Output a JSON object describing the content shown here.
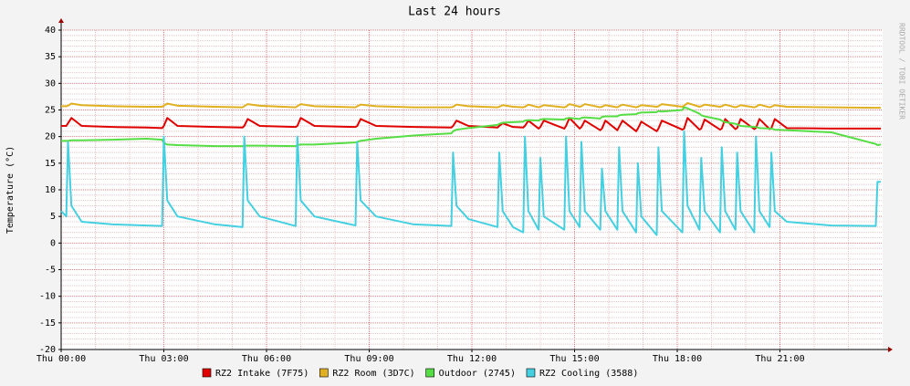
{
  "chart_data": {
    "type": "line",
    "title": "Last 24 hours",
    "y_label": "Temperature (°C)",
    "watermark": "RRDTOOL / TOBI OETIKER",
    "grid": true,
    "legend": "bottom",
    "xlim": [
      0,
      24
    ],
    "xticks": [
      {
        "value": 0,
        "label": "Thu 00:00"
      },
      {
        "value": 3,
        "label": "Thu 03:00"
      },
      {
        "value": 6,
        "label": "Thu 06:00"
      },
      {
        "value": 9,
        "label": "Thu 09:00"
      },
      {
        "value": 12,
        "label": "Thu 12:00"
      },
      {
        "value": 15,
        "label": "Thu 15:00"
      },
      {
        "value": 18,
        "label": "Thu 18:00"
      },
      {
        "value": 21,
        "label": "Thu 21:00"
      }
    ],
    "ylim": [
      -20,
      40
    ],
    "yticks": [
      -20,
      -15,
      -10,
      -5,
      0,
      5,
      10,
      15,
      20,
      25,
      30,
      35,
      40
    ],
    "x": [
      0,
      0.15,
      0.2,
      0.3,
      0.6,
      1.5,
      2.5,
      2.95,
      3.0,
      3.1,
      3.4,
      4.5,
      5.3,
      5.35,
      5.45,
      5.8,
      6.85,
      6.9,
      7.0,
      7.4,
      8.6,
      8.65,
      8.75,
      9.2,
      10.3,
      11.4,
      11.45,
      11.55,
      11.9,
      12.75,
      12.8,
      12.9,
      13.2,
      13.5,
      13.55,
      13.65,
      13.95,
      14.0,
      14.1,
      14.7,
      14.75,
      14.85,
      15.15,
      15.2,
      15.3,
      15.75,
      15.8,
      15.9,
      16.25,
      16.3,
      16.4,
      16.8,
      16.85,
      16.95,
      17.4,
      17.45,
      17.55,
      18.15,
      18.2,
      18.3,
      18.65,
      18.7,
      18.8,
      19.25,
      19.3,
      19.4,
      19.7,
      19.75,
      19.85,
      20.25,
      20.3,
      20.4,
      20.7,
      20.75,
      20.85,
      21.2,
      22.5,
      23.8,
      23.85,
      23.95
    ],
    "series": [
      {
        "name": "RZ2 Intake (7F75)",
        "color": "#e00000",
        "values": [
          22,
          22,
          22.5,
          23.5,
          22,
          21.8,
          21.7,
          21.6,
          22,
          23.5,
          22,
          21.8,
          21.7,
          22,
          23.3,
          22,
          21.8,
          22,
          23.5,
          22,
          21.8,
          22,
          23.3,
          22,
          21.8,
          21.7,
          22,
          23,
          22,
          21.7,
          22,
          22.5,
          21.8,
          21.7,
          22,
          23,
          21.5,
          21.8,
          23,
          21.5,
          22,
          23.5,
          21.5,
          21.8,
          23,
          21.2,
          21.5,
          23,
          21.2,
          21.8,
          23,
          21,
          21.5,
          22.8,
          21,
          21.5,
          23,
          21.3,
          21.5,
          23.5,
          21.3,
          21.5,
          23.2,
          21.3,
          21.5,
          23.3,
          21.4,
          21.6,
          23.3,
          21.4,
          21.6,
          23.3,
          21.4,
          21.6,
          23.3,
          21.6,
          21.5,
          21.5,
          21.5,
          21.5
        ]
      },
      {
        "name": "RZ2 Room (3D7C)",
        "color": "#e0b020",
        "values": [
          25.7,
          25.7,
          25.8,
          26.2,
          25.9,
          25.7,
          25.6,
          25.6,
          25.8,
          26.2,
          25.8,
          25.6,
          25.5,
          25.7,
          26.1,
          25.8,
          25.5,
          25.7,
          26.1,
          25.7,
          25.5,
          25.7,
          26,
          25.7,
          25.5,
          25.5,
          25.6,
          26,
          25.7,
          25.5,
          25.6,
          25.9,
          25.6,
          25.5,
          25.6,
          26,
          25.5,
          25.6,
          25.9,
          25.5,
          25.6,
          26.1,
          25.6,
          25.7,
          26.1,
          25.5,
          25.6,
          25.9,
          25.5,
          25.7,
          26,
          25.5,
          25.6,
          25.9,
          25.6,
          25.7,
          26.1,
          25.6,
          25.8,
          26.3,
          25.6,
          25.7,
          26,
          25.6,
          25.7,
          26,
          25.5,
          25.6,
          25.9,
          25.5,
          25.6,
          26,
          25.5,
          25.6,
          25.9,
          25.6,
          25.5,
          25.4,
          25.4,
          25.4
        ]
      },
      {
        "name": "Outdoor (2745)",
        "color": "#55dd44",
        "values": [
          19.2,
          19.2,
          19.2,
          19.3,
          19.3,
          19.4,
          19.6,
          19.4,
          18.8,
          18.5,
          18.4,
          18.2,
          18.2,
          18.3,
          18.3,
          18.3,
          18.2,
          18.4,
          18.5,
          18.5,
          18.9,
          19,
          19.2,
          19.6,
          20.2,
          20.6,
          21,
          21.3,
          21.6,
          22.2,
          22.4,
          22.6,
          22.7,
          22.8,
          23,
          23.1,
          23,
          23.2,
          23.3,
          23.2,
          23.4,
          23.5,
          23.3,
          23.5,
          23.6,
          23.4,
          23.7,
          23.8,
          23.8,
          24,
          24.1,
          24.2,
          24.4,
          24.5,
          24.6,
          24.8,
          24.7,
          25,
          25.5,
          25.3,
          24.3,
          24,
          23.8,
          23.2,
          23,
          22.7,
          22.4,
          22.3,
          22,
          21.8,
          21.8,
          21.6,
          21.5,
          21.5,
          21.3,
          21.2,
          20.8,
          18.6,
          18.4,
          18.5
        ]
      },
      {
        "name": "RZ2 Cooling (3588)",
        "color": "#44d0e0",
        "values": [
          6,
          5,
          19,
          7,
          4,
          3.5,
          3.3,
          3.2,
          20,
          8,
          5,
          3.5,
          3,
          20,
          8,
          5,
          3.2,
          20,
          8,
          5,
          3.3,
          19,
          8,
          5,
          3.5,
          3.2,
          17,
          7,
          4.5,
          3,
          17,
          6,
          3,
          2,
          20,
          6,
          2.5,
          16,
          5,
          2.5,
          20,
          6,
          3,
          19,
          6,
          2.5,
          14,
          6,
          2.5,
          18,
          6,
          2,
          15,
          5,
          1.5,
          18,
          6,
          2,
          21,
          7,
          2.5,
          16,
          6,
          2,
          18,
          6,
          2.5,
          17,
          6,
          2,
          20,
          6,
          3,
          17,
          6,
          4,
          3.3,
          3.2,
          11.5,
          11.5
        ]
      }
    ]
  }
}
